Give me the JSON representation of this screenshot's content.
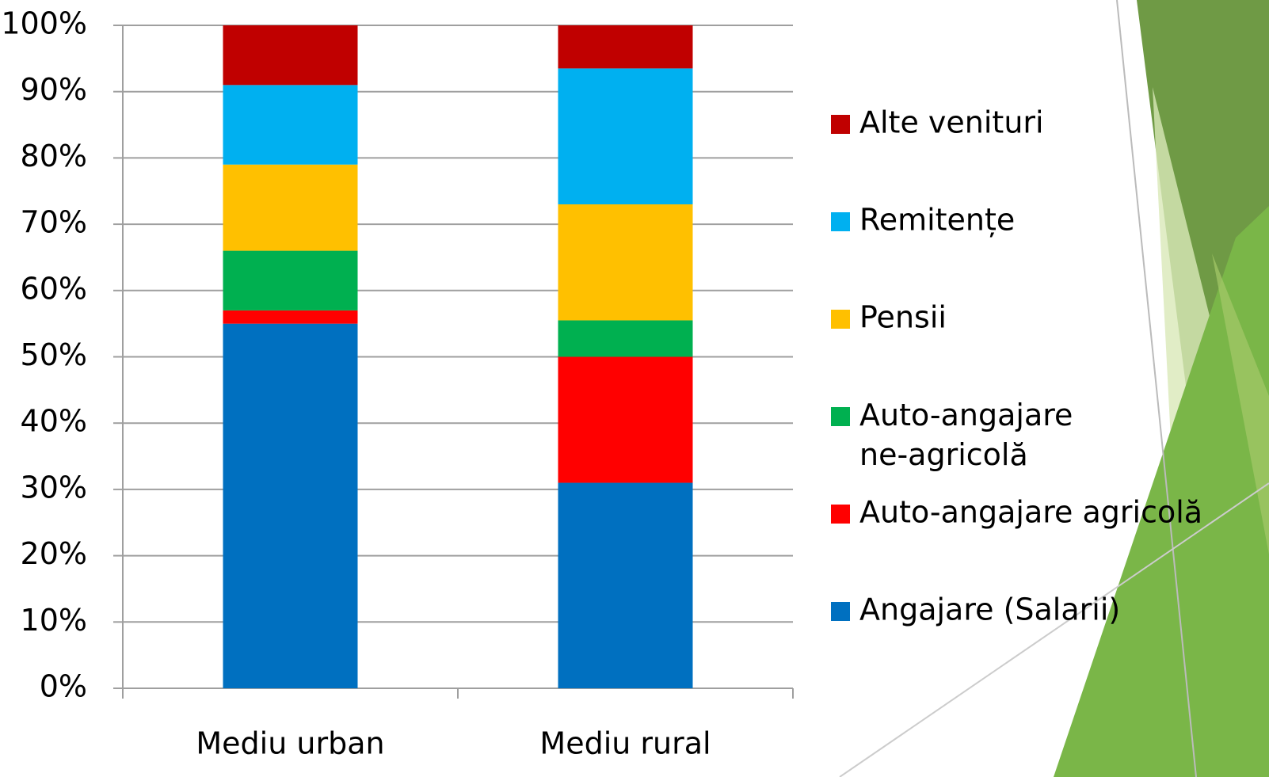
{
  "chart_data": {
    "type": "stacked-bar",
    "categories": [
      "Mediu urban",
      "Mediu rural"
    ],
    "series": [
      {
        "name": "Angajare (Salarii)",
        "color": "#0070c0",
        "values": [
          55,
          31
        ]
      },
      {
        "name": "Auto-angajare agricolă",
        "color": "#ff0000",
        "values": [
          2,
          19
        ]
      },
      {
        "name": "Auto-angajare ne-agricolă",
        "color": "#00b050",
        "values": [
          9,
          5.5
        ]
      },
      {
        "name": "Pensii",
        "color": "#ffc000",
        "values": [
          13,
          17.5
        ]
      },
      {
        "name": "Remitențe",
        "color": "#00b0f0",
        "values": [
          12,
          20.5
        ]
      },
      {
        "name": "Alte venituri",
        "color": "#c00000",
        "values": [
          9,
          6.5
        ]
      }
    ],
    "ylim": [
      0,
      100
    ],
    "yticks": [
      {
        "value": 0,
        "label": "0%"
      },
      {
        "value": 10,
        "label": "10%"
      },
      {
        "value": 20,
        "label": "20%"
      },
      {
        "value": 30,
        "label": "30%"
      },
      {
        "value": 40,
        "label": "40%"
      },
      {
        "value": 50,
        "label": "50%"
      },
      {
        "value": 60,
        "label": "60%"
      },
      {
        "value": 70,
        "label": "70%"
      },
      {
        "value": 80,
        "label": "80%"
      },
      {
        "value": 90,
        "label": "90%"
      },
      {
        "value": 100,
        "label": "100%"
      }
    ],
    "grid": true,
    "legend": "right"
  }
}
